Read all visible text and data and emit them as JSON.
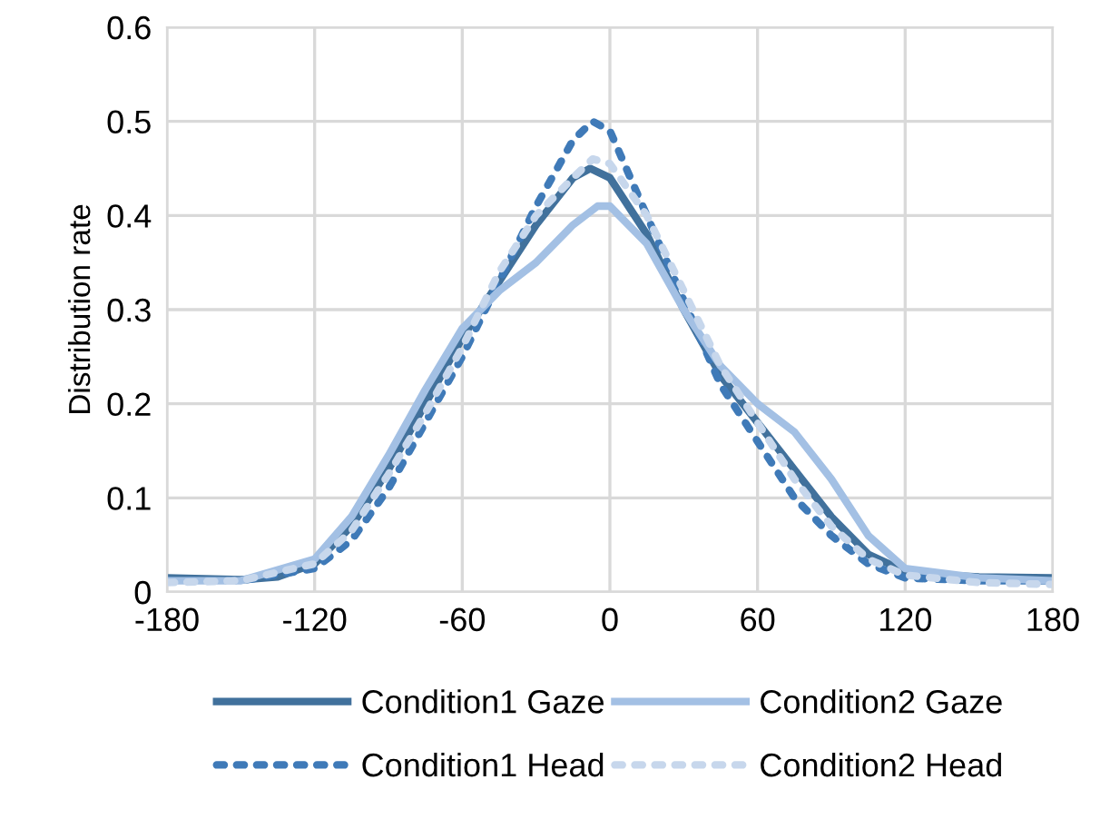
{
  "chart_data": {
    "type": "line",
    "ylabel": "Distribution rate",
    "xlim": [
      -180,
      180
    ],
    "xticks": [
      -180,
      -120,
      -60,
      0,
      60,
      120,
      180
    ],
    "ylim": [
      0,
      0.6
    ],
    "yticks": [
      0,
      0.1,
      0.2,
      0.3,
      0.4,
      0.5,
      0.6
    ],
    "grid": true,
    "legend": "bottom",
    "marker": "none",
    "series": [
      {
        "name": "Condition1 Gaze",
        "color": "#41719c",
        "line_style": "solid",
        "x": [
          -180,
          -150,
          -135,
          -120,
          -105,
          -90,
          -75,
          -60,
          -45,
          -30,
          -15,
          -8,
          0,
          15,
          30,
          45,
          60,
          75,
          90,
          105,
          120,
          135,
          150,
          180
        ],
        "values": [
          0.015,
          0.013,
          0.016,
          0.03,
          0.07,
          0.13,
          0.2,
          0.27,
          0.33,
          0.39,
          0.44,
          0.45,
          0.44,
          0.38,
          0.3,
          0.23,
          0.18,
          0.13,
          0.08,
          0.04,
          0.022,
          0.018,
          0.016,
          0.015
        ]
      },
      {
        "name": "Condition1 Head",
        "color": "#3f7ab8",
        "line_style": "dotted",
        "x": [
          -180,
          -150,
          -120,
          -105,
          -90,
          -75,
          -60,
          -45,
          -30,
          -15,
          -7,
          0,
          15,
          30,
          45,
          60,
          75,
          90,
          105,
          120,
          150,
          180
        ],
        "values": [
          0.012,
          0.012,
          0.025,
          0.055,
          0.11,
          0.18,
          0.25,
          0.33,
          0.41,
          0.48,
          0.5,
          0.49,
          0.4,
          0.31,
          0.22,
          0.16,
          0.1,
          0.06,
          0.03,
          0.015,
          0.012,
          0.012
        ]
      },
      {
        "name": "Condition2 Gaze",
        "color": "#a3c0e4",
        "line_style": "solid",
        "x": [
          -180,
          -150,
          -120,
          -105,
          -90,
          -75,
          -60,
          -45,
          -30,
          -15,
          -5,
          0,
          15,
          30,
          45,
          60,
          75,
          90,
          105,
          120,
          150,
          180
        ],
        "values": [
          0.012,
          0.012,
          0.035,
          0.08,
          0.145,
          0.215,
          0.28,
          0.32,
          0.35,
          0.39,
          0.41,
          0.41,
          0.37,
          0.3,
          0.24,
          0.2,
          0.17,
          0.12,
          0.06,
          0.025,
          0.015,
          0.012
        ]
      },
      {
        "name": "Condition2 Head",
        "color": "#c7d7ec",
        "line_style": "dotted",
        "x": [
          -180,
          -150,
          -120,
          -105,
          -90,
          -75,
          -60,
          -45,
          -30,
          -15,
          -7,
          0,
          15,
          30,
          45,
          60,
          75,
          90,
          105,
          120,
          150,
          180
        ],
        "values": [
          0.01,
          0.012,
          0.03,
          0.065,
          0.125,
          0.19,
          0.26,
          0.34,
          0.4,
          0.44,
          0.46,
          0.455,
          0.4,
          0.32,
          0.24,
          0.18,
          0.12,
          0.07,
          0.035,
          0.018,
          0.01,
          0.008
        ]
      }
    ]
  }
}
